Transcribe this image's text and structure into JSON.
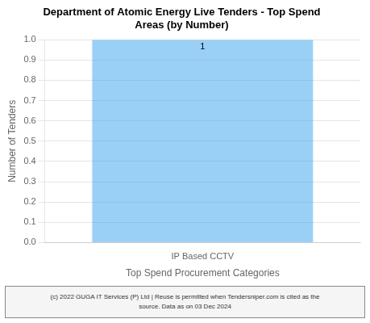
{
  "chart_data": {
    "type": "bar",
    "title": [
      "Department of Atomic Energy Live Tenders - Top Spend",
      "Areas (by Number)"
    ],
    "categories": [
      "IP Based CCTV"
    ],
    "values": [
      1
    ],
    "x_label": "Top Spend Procurement Categories",
    "y_label": "Number of Tenders",
    "ylim": [
      0,
      1.0
    ],
    "yticks": [
      {
        "value": 0,
        "label": "0.0"
      },
      0.1,
      0.2,
      0.3,
      0.4,
      0.5,
      0.6,
      0.7,
      0.8,
      0.9,
      {
        "value": 1,
        "label": "1.0"
      }
    ],
    "grid": true,
    "data_labels": true,
    "annotations": [
      "(c) 2022 GUGA IT Services (P) Ltd | Reuse is permitted when Tendersniper.com is cited as the",
      "source. Data as on 03 Dec 2024"
    ]
  }
}
